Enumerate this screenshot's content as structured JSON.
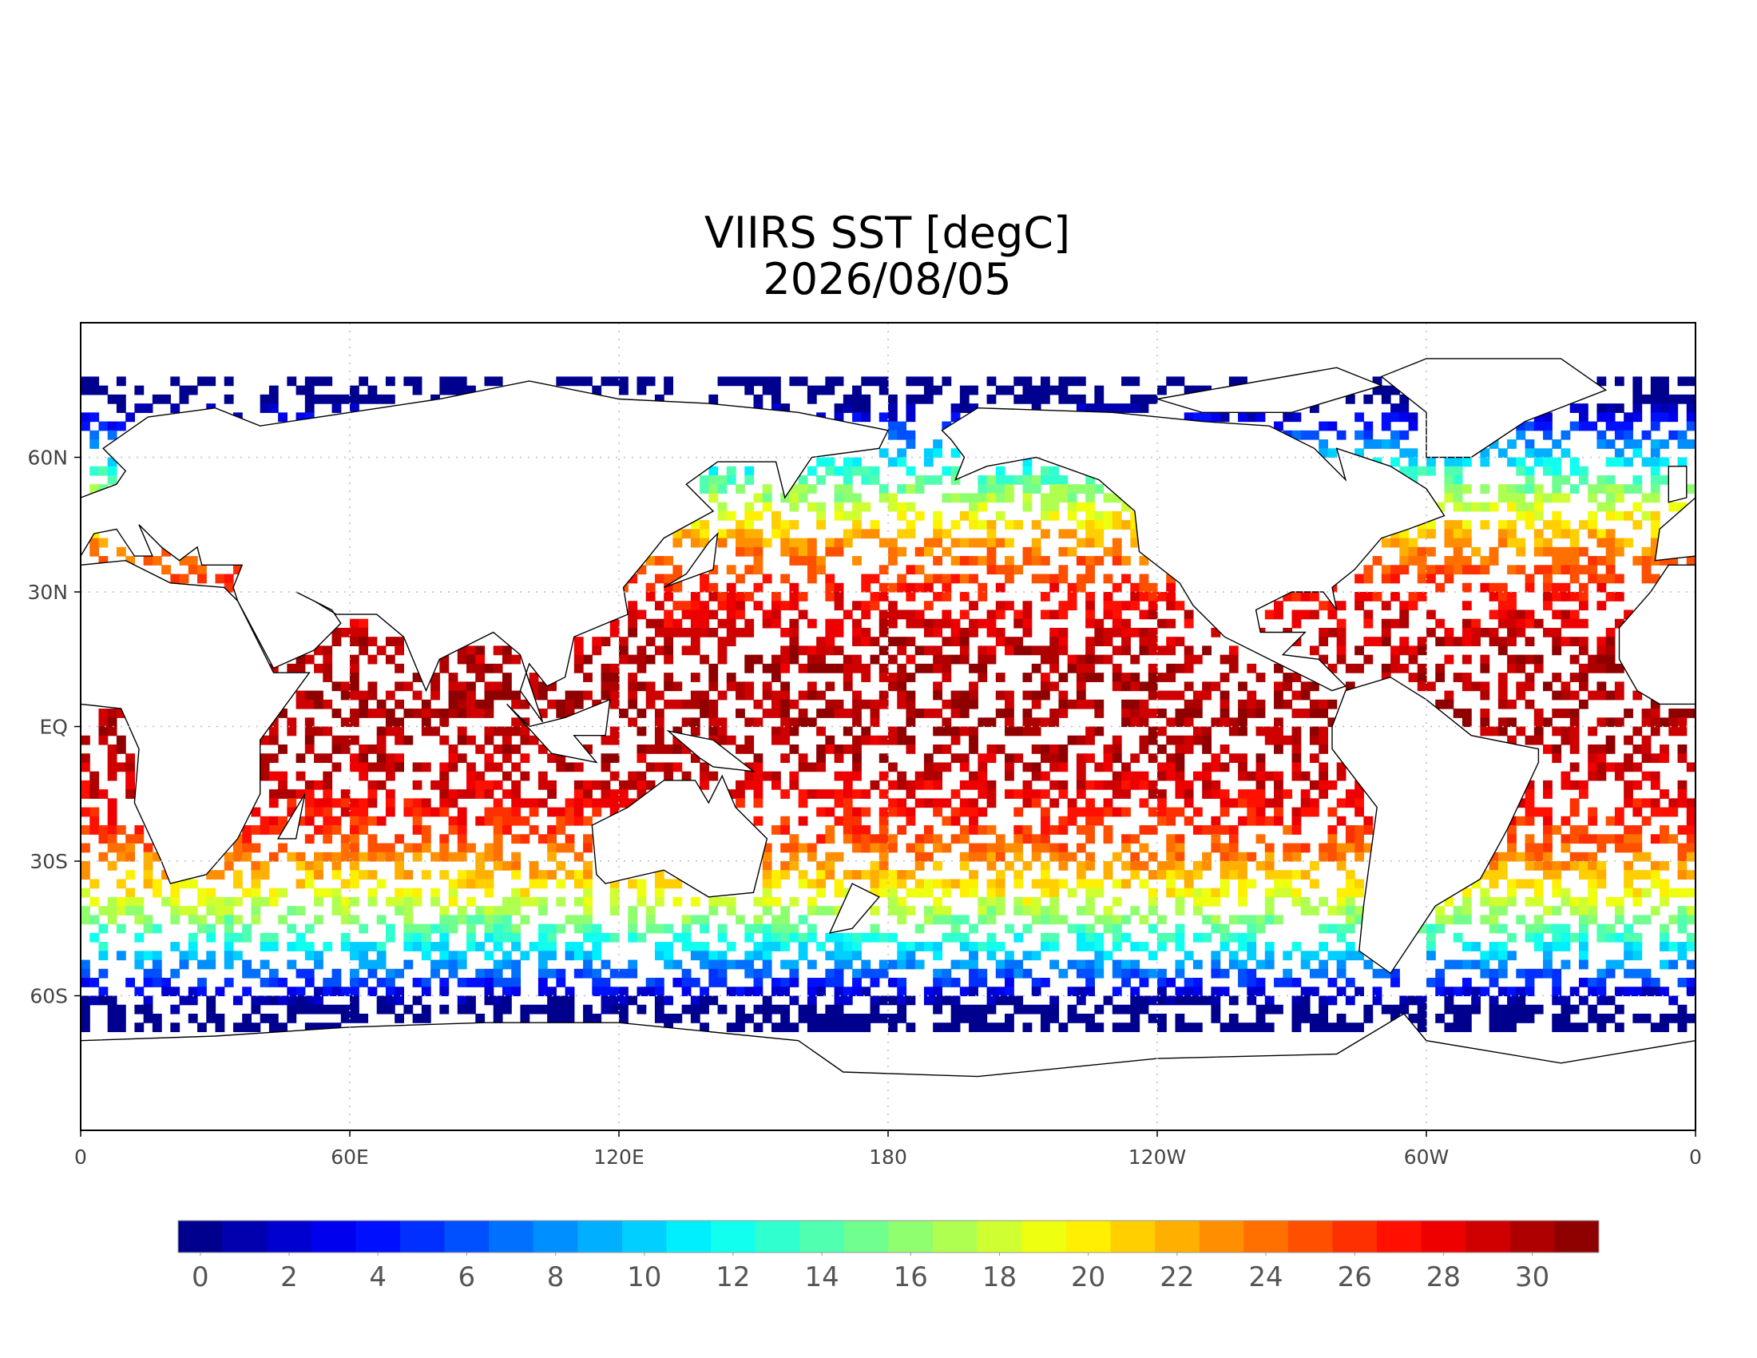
{
  "map": {
    "title": "VIIRS SST [degC]",
    "subtitle": "2026/08/05",
    "xlim": [
      0,
      360
    ],
    "ylim": [
      -90,
      90
    ],
    "xticks": [
      0,
      {
        "value": 60,
        "label": "60E"
      },
      {
        "value": 120,
        "label": "120E"
      },
      180,
      {
        "value": 240,
        "label": "120W"
      },
      {
        "value": 300,
        "label": "60W"
      },
      {
        "value": 360,
        "label": "0"
      }
    ],
    "yticks": [
      {
        "value": 60,
        "label": "60N"
      },
      {
        "value": 30,
        "label": "30N"
      },
      {
        "value": 0,
        "label": "EQ"
      },
      {
        "value": -30,
        "label": "30S"
      },
      {
        "value": -60,
        "label": "60S"
      }
    ],
    "grid": true
  },
  "colorbar": {
    "lim": [
      -0.5,
      31.5
    ],
    "ticks": [
      0,
      2,
      4,
      6,
      8,
      10,
      12,
      14,
      16,
      18,
      20,
      22,
      24,
      26,
      28,
      30
    ],
    "colors": [
      "#00008f",
      "#0000af",
      "#0000cf",
      "#0000ef",
      "#0010ff",
      "#0030ff",
      "#0050ff",
      "#0070ff",
      "#008fff",
      "#00afff",
      "#00cfff",
      "#00efff",
      "#10ffef",
      "#30ffcf",
      "#50ffaf",
      "#70ff8f",
      "#8fff70",
      "#afff50",
      "#cfff30",
      "#efff10",
      "#ffef00",
      "#ffcf00",
      "#ffaf00",
      "#ff8f00",
      "#ff7000",
      "#ff5000",
      "#ff3000",
      "#ff1000",
      "#ef0000",
      "#cf0000",
      "#af0000",
      "#8f0000"
    ]
  }
}
